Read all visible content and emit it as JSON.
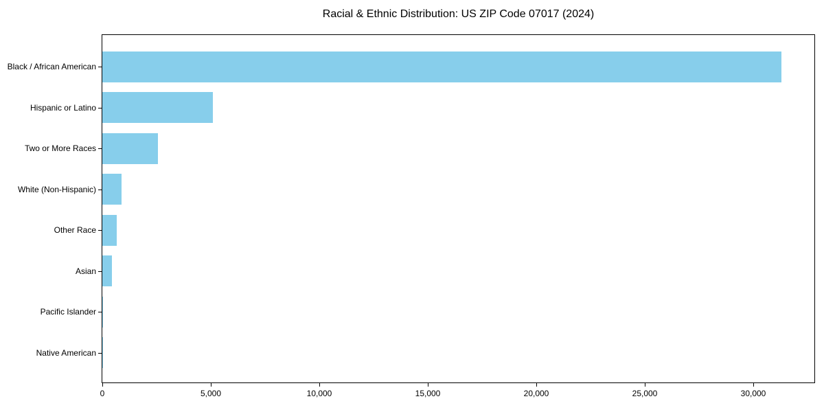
{
  "chart_data": {
    "type": "bar",
    "orientation": "horizontal",
    "title": "Racial & Ethnic Distribution: US ZIP Code 07017 (2024)",
    "xlabel": "",
    "ylabel": "",
    "categories": [
      "Black / African American",
      "Hispanic or Latino",
      "Two or More Races",
      "White (Non-Hispanic)",
      "Other Race",
      "Asian",
      "Pacific Islander",
      "Native American"
    ],
    "values": [
      31270,
      5100,
      2550,
      900,
      650,
      450,
      30,
      15
    ],
    "xlim": [
      0,
      32860
    ],
    "x_ticks": [
      0,
      5000,
      10000,
      15000,
      20000,
      25000,
      30000
    ],
    "x_tick_labels": [
      "0",
      "5,000",
      "10,000",
      "15,000",
      "20,000",
      "25,000",
      "30,000"
    ],
    "bar_color": "#87CEEB",
    "background_color": "#ffffff",
    "axis_color": "#000000",
    "grid": false,
    "legend": null
  }
}
